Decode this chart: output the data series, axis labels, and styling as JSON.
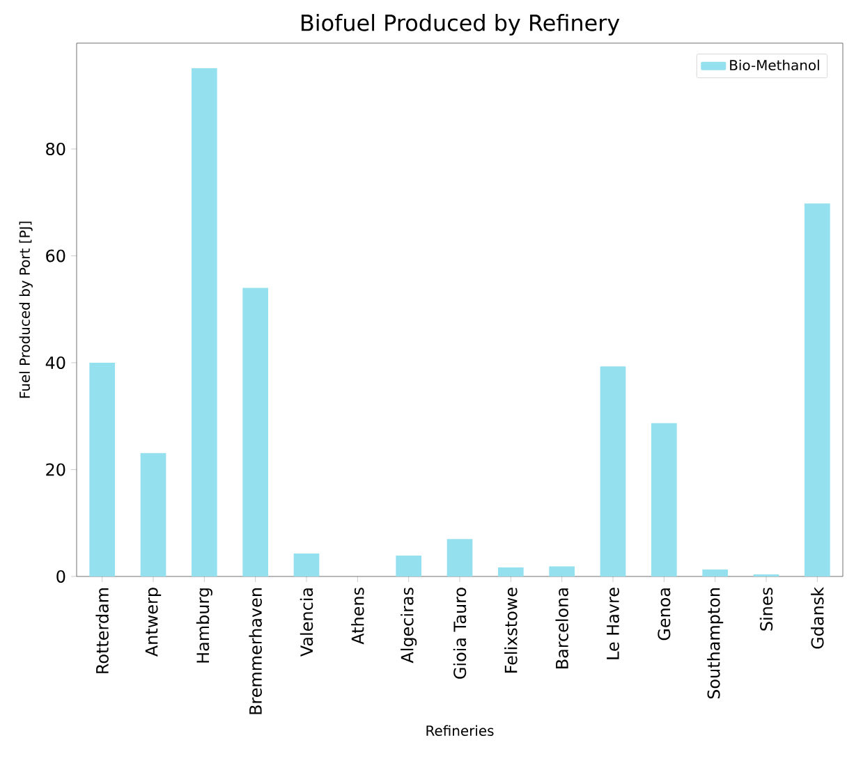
{
  "chart_data": {
    "type": "bar",
    "title": "Biofuel Produced by Refinery",
    "xlabel": "Refineries",
    "ylabel": "Fuel Produced by Port [PJ]",
    "categories": [
      "Rotterdam",
      "Antwerp",
      "Hamburg",
      "Bremmerhaven",
      "Valencia",
      "Athens",
      "Algeciras",
      "Gioia Tauro",
      "Felixstowe",
      "Barcelona",
      "Le Havre",
      "Genoa",
      "Southampton",
      "Sines",
      "Gdansk"
    ],
    "series": [
      {
        "name": "Bio-Methanol",
        "color": "#94e0ee",
        "values": [
          40,
          23.1,
          95.1,
          54,
          4.3,
          0,
          3.9,
          7,
          1.7,
          1.9,
          39.3,
          28.7,
          1.3,
          0.4,
          69.8
        ]
      }
    ],
    "ylim": [
      0,
      99.8
    ],
    "yticks": [
      0,
      20,
      40,
      60,
      80
    ],
    "legend": "top right",
    "grid": false
  }
}
